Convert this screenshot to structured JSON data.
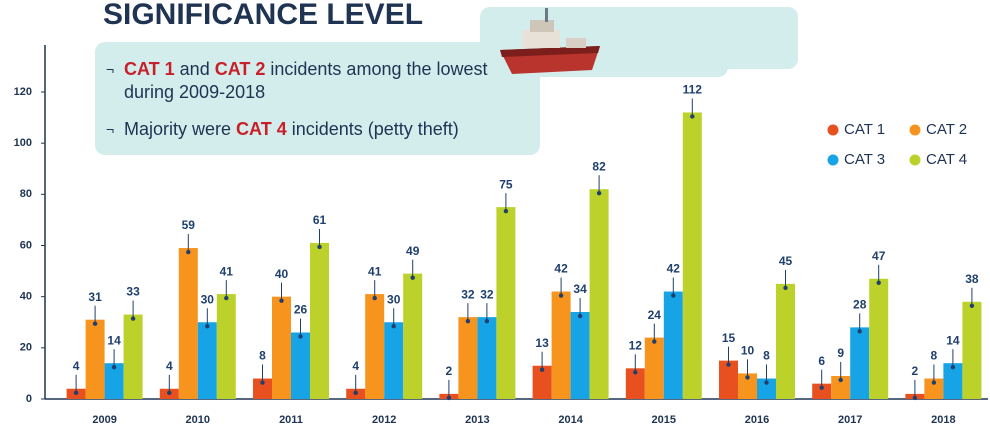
{
  "chart_data": {
    "type": "bar",
    "title": "SIGNIFICANCE LEVEL",
    "annotations": [
      [
        {
          "text": "CAT 1",
          "highlight": true
        },
        {
          "text": " and "
        },
        {
          "text": "CAT 2",
          "highlight": true
        },
        {
          "text": " incidents among the lowest during 2009-2018"
        }
      ],
      [
        {
          "text": "Majority were "
        },
        {
          "text": "CAT 4",
          "highlight": true
        },
        {
          "text": " incidents (petty theft)"
        }
      ]
    ],
    "categories": [
      "2009",
      "2010",
      "2011",
      "2012",
      "2013",
      "2014",
      "2015",
      "2016",
      "2017",
      "2018"
    ],
    "series": [
      {
        "name": "CAT 1",
        "color": "#e8501f",
        "values": [
          4,
          4,
          8,
          4,
          2,
          13,
          12,
          15,
          6,
          2
        ]
      },
      {
        "name": "CAT 2",
        "color": "#f7941d",
        "values": [
          31,
          59,
          40,
          41,
          32,
          42,
          24,
          10,
          9,
          8
        ]
      },
      {
        "name": "CAT 3",
        "color": "#17a4e6",
        "values": [
          14,
          30,
          26,
          30,
          32,
          34,
          42,
          8,
          28,
          14
        ]
      },
      {
        "name": "CAT 4",
        "color": "#bcd22b",
        "values": [
          33,
          41,
          61,
          49,
          75,
          82,
          112,
          45,
          47,
          38
        ]
      }
    ],
    "ylim": [
      0,
      120
    ],
    "yticks": [
      0,
      20,
      40,
      60,
      80,
      100,
      120
    ],
    "legend": "right",
    "grid": false
  }
}
